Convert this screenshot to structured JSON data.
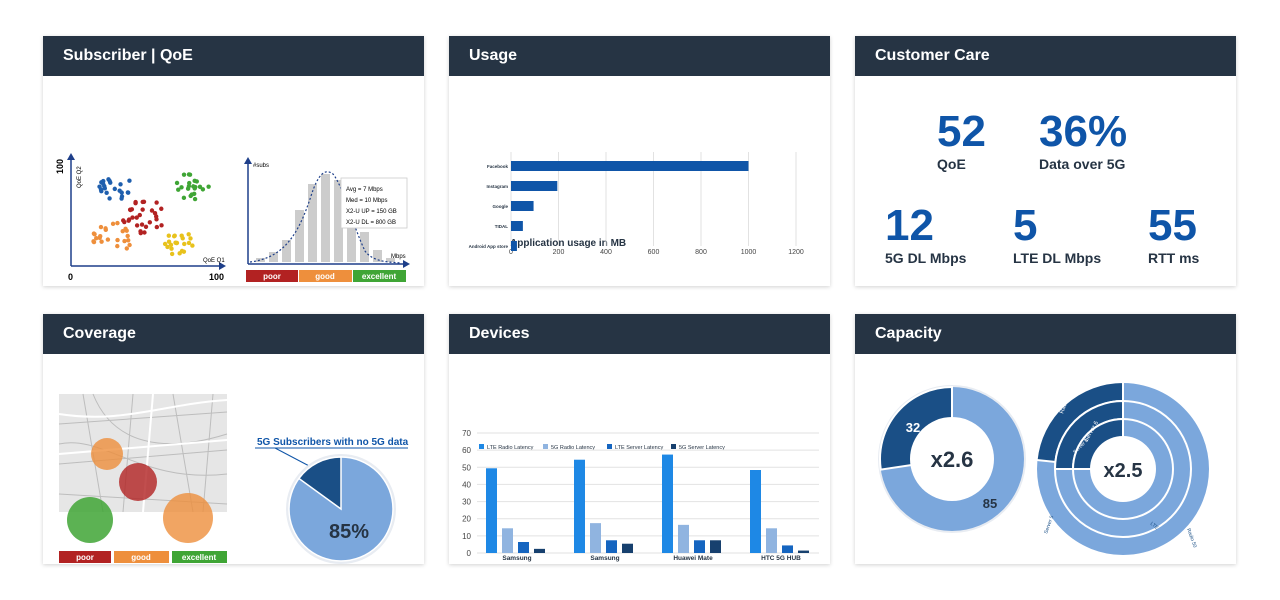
{
  "colors": {
    "header_bg": "#263444",
    "primary_blue": "#0f55a8",
    "light_blue": "#7ba7dc",
    "dark_blue": "#1a4f86",
    "bright_blue": "#1e88e5",
    "poor": "#b22222",
    "good": "#ee8f3c",
    "excellent": "#3fa535"
  },
  "cards": {
    "subscriber": {
      "title": "Subscriber | QoE",
      "scatter": {
        "axis_y_top": "100",
        "axis_y_label": "QoE Q2",
        "axis_x_left": "0",
        "axis_x_right": "100",
        "axis_x_label": "QoE Q1"
      },
      "hist": {
        "y_label": "#subs",
        "x_label": "Mbps",
        "stats": [
          "Avg = 7 Mbps",
          "Med = 10 Mbps",
          "X2-U UP = 150 GB",
          "X2-U DL = 800 GB"
        ]
      },
      "legend": [
        "poor",
        "good",
        "excellent"
      ]
    },
    "usage": {
      "title": "Usage",
      "chart_title": "Application usage in MB"
    },
    "care": {
      "title": "Customer Care",
      "kpis": [
        {
          "value": "52",
          "label": "QoE"
        },
        {
          "value": "36%",
          "label": "Data over 5G"
        },
        {
          "value": "12",
          "label": "5G DL Mbps"
        },
        {
          "value": "5",
          "label": "LTE DL Mbps"
        },
        {
          "value": "55",
          "label": "RTT ms"
        }
      ]
    },
    "coverage": {
      "title": "Coverage",
      "legend": [
        "poor",
        "good",
        "excellent"
      ],
      "pie_title": "5G Subscribers with no 5G data",
      "pie_label": "85%"
    },
    "devices": {
      "title": "Devices"
    },
    "capacity": {
      "title": "Capacity",
      "donut1": {
        "center": "x2.6",
        "labels": [
          "32",
          "85"
        ],
        "values": [
          32,
          85
        ]
      },
      "donut2": {
        "center": "x2.5",
        "ring_labels": [
          "Radio 40",
          "Radio 10",
          "Server 6",
          "Server 5",
          "LTE",
          "Radio 50",
          "Server 8"
        ]
      }
    }
  },
  "chart_data": [
    {
      "type": "bar",
      "orientation": "horizontal",
      "title": "Application usage in MB",
      "categories": [
        "Facebook",
        "Instagram",
        "Google",
        "TIDAL",
        "Android App store"
      ],
      "values": [
        1000,
        195,
        95,
        50,
        25
      ],
      "xlim": [
        0,
        1200
      ],
      "x_ticks": [
        "0",
        "200",
        "400",
        "600",
        "800",
        "1000",
        "1200"
      ],
      "grid": true
    },
    {
      "type": "bar",
      "categories": [
        "Samsung\nGalaxy S10 5G",
        "Samsung\nGalaxy Note 10+ 5G",
        "Huawei Mate\n20X 5G",
        "HTC 5G HUB"
      ],
      "series": [
        {
          "name": "LTE Radio Latency",
          "color": "#1e88e5",
          "values": [
            50,
            55,
            58,
            49
          ]
        },
        {
          "name": "5G Radio Latency",
          "color": "#90b4e0",
          "values": [
            15,
            18,
            17,
            15
          ]
        },
        {
          "name": "LTE Server Latency",
          "color": "#1565c0",
          "values": [
            7,
            8,
            8,
            5
          ]
        },
        {
          "name": "5G Server Latency",
          "color": "#17406e",
          "values": [
            3,
            6,
            8,
            2
          ]
        }
      ],
      "ylim": [
        0,
        70
      ],
      "y_ticks": [
        "0",
        "10",
        "20",
        "30",
        "40",
        "50",
        "60",
        "70"
      ],
      "legend": "top",
      "grid": true
    },
    {
      "type": "pie",
      "title": "5G Subscribers with no 5G data",
      "values": [
        85,
        15
      ],
      "labels": [
        "85%",
        ""
      ]
    }
  ]
}
